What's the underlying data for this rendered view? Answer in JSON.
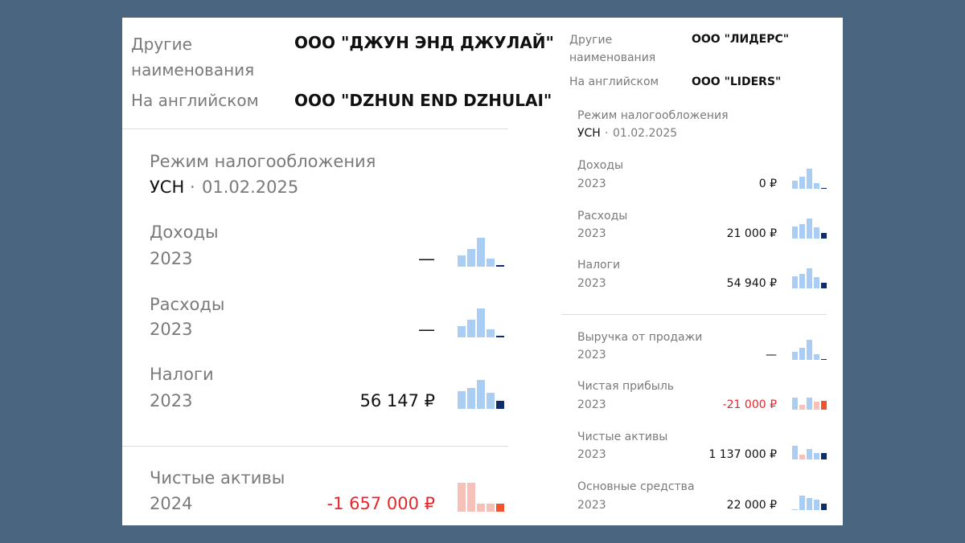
{
  "left": {
    "other_names_label": "Другие наименования",
    "other_name": "ООО \"ДЖУН ЭНД ДЖУЛАЙ\"",
    "english_label": "На английском",
    "english_name": "ООО \"DZHUN END DZHULAI\"",
    "tax": {
      "label": "Режим налогообложения",
      "regime": "УСН",
      "separator": "·",
      "date": "01.02.2025"
    },
    "rows": [
      {
        "label": "Доходы",
        "year": "2023",
        "value": "—"
      },
      {
        "label": "Расходы",
        "year": "2023",
        "value": "—"
      },
      {
        "label": "Налоги",
        "year": "2023",
        "value": "56 147 ₽"
      },
      {
        "label": "Чистые активы",
        "year": "2024",
        "value": "-1 657 000 ₽"
      }
    ]
  },
  "right": {
    "other_names_label": "Другие наименования",
    "other_name": "ООО \"ЛИДЕРС\"",
    "english_label": "На английском",
    "english_name": "ООО \"LIDERS\"",
    "tax": {
      "label": "Режим налогообложения",
      "regime": "УСН",
      "separator": "·",
      "date": "01.02.2025"
    },
    "rows": [
      {
        "label": "Доходы",
        "year": "2023",
        "value": "0 ₽"
      },
      {
        "label": "Расходы",
        "year": "2023",
        "value": "21 000 ₽"
      },
      {
        "label": "Налоги",
        "year": "2023",
        "value": "54 940 ₽"
      },
      {
        "label": "Выручка от продажи",
        "year": "2023",
        "value": "—"
      },
      {
        "label": "Чистая прибыль",
        "year": "2023",
        "value": "-21 000 ₽"
      },
      {
        "label": "Чистые активы",
        "year": "2023",
        "value": "1 137 000 ₽"
      },
      {
        "label": "Основные средства",
        "year": "2023",
        "value": "22 000 ₽"
      }
    ]
  }
}
